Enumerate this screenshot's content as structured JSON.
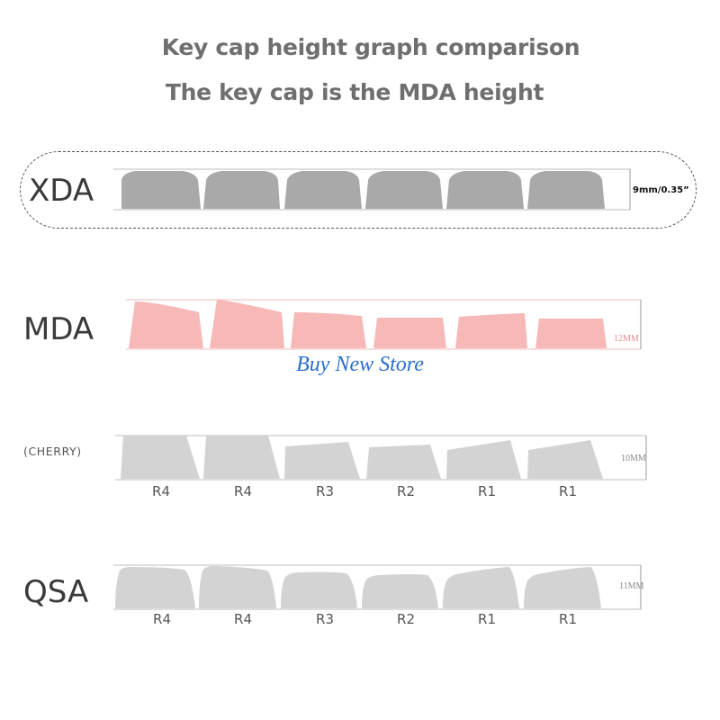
{
  "title_line1": "Key cap height graph comparison",
  "title_line2": "The key cap is the MDA height",
  "watermark": "Buy New Store",
  "profiles": {
    "xda": {
      "label": "XDA",
      "height": "9mm/0.35”"
    },
    "mda": {
      "label": "MDA",
      "height": "12MM"
    },
    "cherry": {
      "label": "(CHERRY)",
      "height": "10MM",
      "rows": [
        "R4",
        "R4",
        "R3",
        "R2",
        "R1",
        "R1"
      ]
    },
    "qsa": {
      "label": "QSA",
      "height": "11MM",
      "rows": [
        "R4",
        "R4",
        "R3",
        "R2",
        "R1",
        "R1"
      ]
    }
  },
  "colors": {
    "gray_key": "#a9a9a9",
    "light_key": "#d3d3d3",
    "pink_key": "#f7b8b8",
    "title": "#6f6f6f",
    "watermark": "#2a6fc9"
  }
}
